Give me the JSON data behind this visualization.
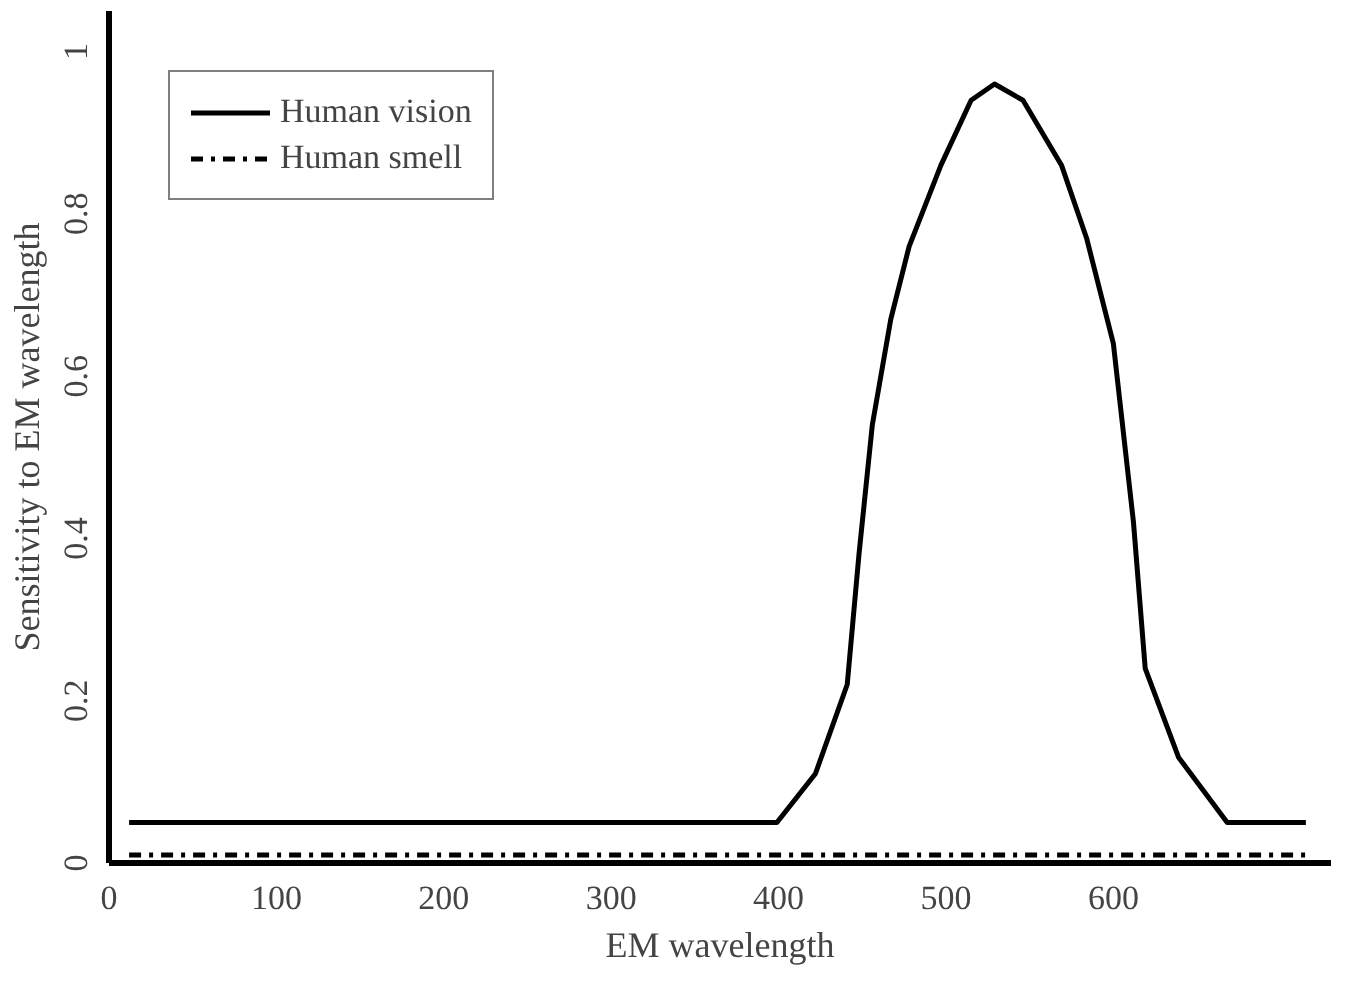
{
  "chart_data": {
    "type": "line",
    "xlabel": "EM wavelength",
    "ylabel": "Sensitivity to EM wavelength",
    "xlim": [
      0,
      730
    ],
    "ylim": [
      0,
      1.05
    ],
    "xticks": [
      0,
      100,
      200,
      300,
      400,
      500,
      600
    ],
    "yticks": [
      0,
      0.2,
      0.4,
      0.6,
      0.8,
      1
    ],
    "legend": "top left",
    "grid": false,
    "series": [
      {
        "name": "Human vision",
        "color": "#000000",
        "line_style": "solid",
        "x": [
          12,
          399,
          422,
          441,
          448,
          456,
          467,
          478,
          497,
          515,
          529,
          546,
          569,
          584,
          600,
          612,
          619,
          639,
          668,
          715
        ],
        "values": [
          0.05,
          0.05,
          0.11,
          0.22,
          0.38,
          0.54,
          0.67,
          0.76,
          0.86,
          0.94,
          0.96,
          0.94,
          0.86,
          0.77,
          0.64,
          0.42,
          0.24,
          0.13,
          0.05,
          0.05
        ]
      },
      {
        "name": "Human smell",
        "color": "#000000",
        "line_style": "dashdot",
        "x": [
          12,
          715
        ],
        "values": [
          0.01,
          0.01
        ]
      }
    ]
  }
}
